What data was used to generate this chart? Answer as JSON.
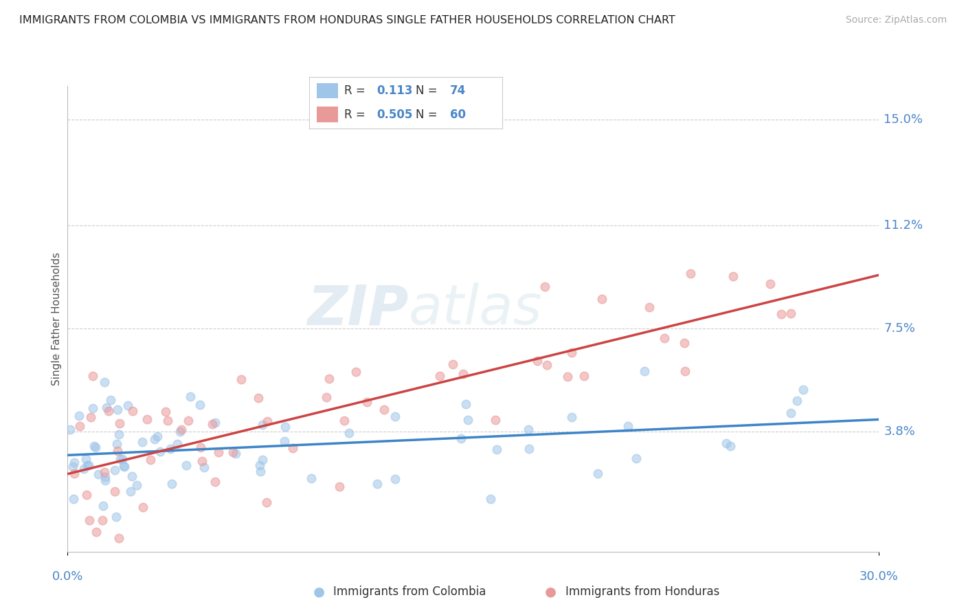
{
  "title": "IMMIGRANTS FROM COLOMBIA VS IMMIGRANTS FROM HONDURAS SINGLE FATHER HOUSEHOLDS CORRELATION CHART",
  "source": "Source: ZipAtlas.com",
  "ylabel": "Single Father Households",
  "watermark": "ZIPatlas",
  "xlim": [
    0.0,
    0.3
  ],
  "ylim": [
    -0.005,
    0.162
  ],
  "yticks": [
    0.038,
    0.075,
    0.112,
    0.15
  ],
  "ytick_labels": [
    "3.8%",
    "7.5%",
    "11.2%",
    "15.0%"
  ],
  "xtick_labels": [
    "0.0%",
    "30.0%"
  ],
  "colombia_color": "#9fc5e8",
  "honduras_color": "#ea9999",
  "colombia_line_color": "#3d85c8",
  "honduras_line_color": "#cc4444",
  "colombia_R": 0.113,
  "colombia_N": 74,
  "honduras_R": 0.505,
  "honduras_N": 60,
  "grid_color": "#cccccc",
  "background_color": "#ffffff",
  "title_color": "#222222",
  "tick_label_color": "#4a86c8"
}
